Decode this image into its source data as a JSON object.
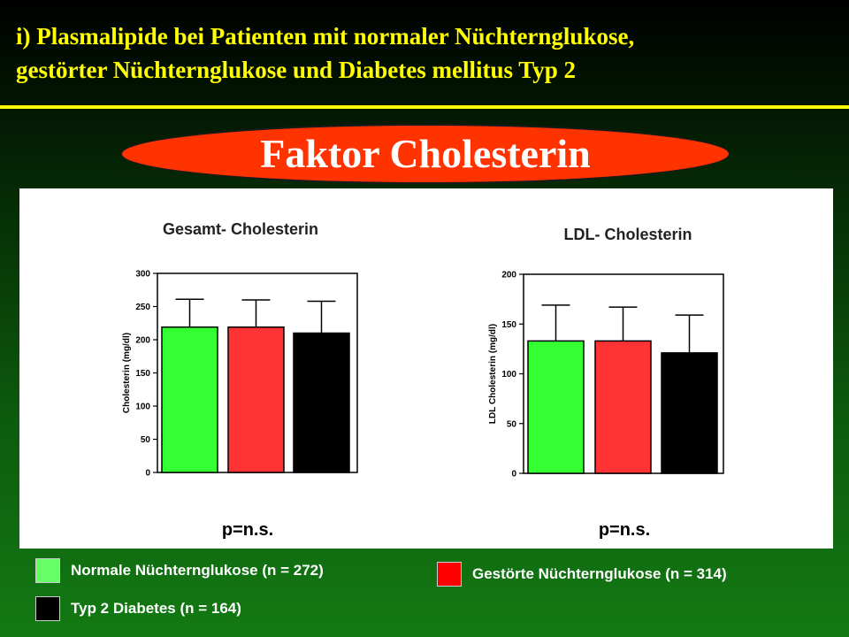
{
  "slide": {
    "title_line1": "i) Plasmalipide bei Patienten mit normaler Nüchternglukose,",
    "title_line2": "gestörter Nüchternglukose und Diabetes mellitus Typ 2",
    "banner": "Faktor Cholesterin"
  },
  "legend": [
    {
      "label": "Normale Nüchternglukose (n = 272)",
      "color": "#66ff66"
    },
    {
      "label": "Gestörte Nüchternglukose (n = 314)",
      "color": "#ff0000"
    },
    {
      "label": "Typ 2 Diabetes (n = 164)",
      "color": "#000000"
    }
  ],
  "chart_data": [
    {
      "type": "bar",
      "title": "Gesamt- Cholesterin",
      "ylabel": "Cholesterin (mg/dl)",
      "ylim": [
        0,
        300
      ],
      "yticks": [
        0,
        50,
        100,
        150,
        200,
        250,
        300
      ],
      "categories": [
        "Normale Nüchternglukose",
        "Gestörte Nüchternglukose",
        "Typ 2 Diabetes"
      ],
      "values": [
        219,
        219,
        210
      ],
      "error_upper": [
        261,
        260,
        258
      ],
      "colors": [
        "#33ff33",
        "#ff3333",
        "#000000"
      ],
      "annotation": "p=n.s."
    },
    {
      "type": "bar",
      "title": "LDL- Cholesterin",
      "ylabel": "LDL Cholesterin (mg/dl)",
      "ylim": [
        0,
        200
      ],
      "yticks": [
        0,
        50,
        100,
        150,
        200
      ],
      "categories": [
        "Normale Nüchternglukose",
        "Gestörte Nüchternglukose",
        "Typ 2 Diabetes"
      ],
      "values": [
        133,
        133,
        121
      ],
      "error_upper": [
        169,
        167,
        159
      ],
      "colors": [
        "#33ff33",
        "#ff3333",
        "#000000"
      ],
      "annotation": "p=n.s."
    }
  ]
}
